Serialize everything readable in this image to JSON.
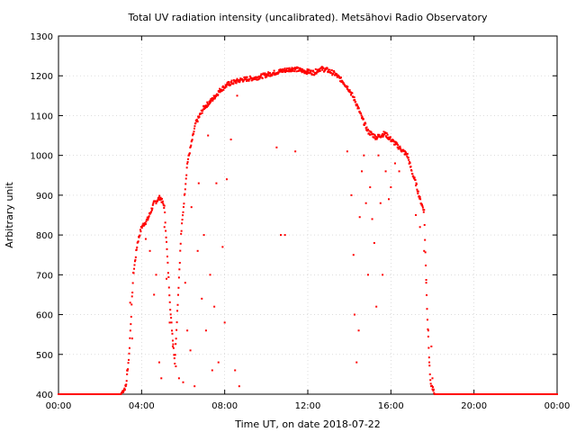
{
  "chart_data": {
    "type": "scatter",
    "title": "Total UV radiation intensity (uncalibrated). Metsähovi Radio Observatory",
    "xlabel": "Time UT, on date 2018-07-22",
    "ylabel": "Arbitrary unit",
    "xlim": [
      0,
      24
    ],
    "ylim": [
      400,
      1300
    ],
    "xticks": [
      0,
      4,
      8,
      12,
      16,
      20,
      24
    ],
    "xtick_labels": [
      "00:00",
      "04:00",
      "08:00",
      "12:00",
      "16:00",
      "20:00",
      "00:00"
    ],
    "yticks": [
      400,
      500,
      600,
      700,
      800,
      900,
      1000,
      1100,
      1200,
      1300
    ],
    "ytick_labels": [
      "400",
      "500",
      "600",
      "700",
      "800",
      "900",
      "1000",
      "1100",
      "1200",
      "1300"
    ],
    "grid": true,
    "marker_color": "#ff0000",
    "envelope": [
      [
        0,
        400
      ],
      [
        3.0,
        400
      ],
      [
        3.25,
        420
      ],
      [
        3.4,
        500
      ],
      [
        3.6,
        700
      ],
      [
        3.8,
        780
      ],
      [
        4.0,
        820
      ],
      [
        4.3,
        840
      ],
      [
        4.6,
        880
      ],
      [
        4.9,
        895
      ],
      [
        5.1,
        870
      ],
      [
        5.4,
        600
      ],
      [
        5.6,
        480
      ],
      [
        5.9,
        800
      ],
      [
        6.2,
        980
      ],
      [
        6.6,
        1080
      ],
      [
        7.0,
        1120
      ],
      [
        7.4,
        1140
      ],
      [
        7.8,
        1165
      ],
      [
        8.2,
        1180
      ],
      [
        8.8,
        1190
      ],
      [
        9.5,
        1195
      ],
      [
        10.2,
        1205
      ],
      [
        10.8,
        1213
      ],
      [
        11.3,
        1218
      ],
      [
        11.8,
        1212
      ],
      [
        12.3,
        1208
      ],
      [
        12.6,
        1218
      ],
      [
        12.9,
        1215
      ],
      [
        13.3,
        1205
      ],
      [
        13.7,
        1185
      ],
      [
        14.0,
        1165
      ],
      [
        14.3,
        1135
      ],
      [
        14.6,
        1095
      ],
      [
        14.9,
        1060
      ],
      [
        15.3,
        1045
      ],
      [
        15.7,
        1055
      ],
      [
        16.1,
        1035
      ],
      [
        16.5,
        1015
      ],
      [
        16.8,
        1000
      ],
      [
        17.0,
        960
      ],
      [
        17.2,
        930
      ],
      [
        17.4,
        890
      ],
      [
        17.6,
        860
      ],
      [
        17.75,
        600
      ],
      [
        17.9,
        430
      ],
      [
        18.1,
        400
      ],
      [
        24,
        400
      ]
    ],
    "scattered_points": [
      [
        3.3,
        460
      ],
      [
        3.45,
        630
      ],
      [
        3.55,
        540
      ],
      [
        4.2,
        790
      ],
      [
        4.4,
        760
      ],
      [
        4.6,
        650
      ],
      [
        4.7,
        700
      ],
      [
        4.85,
        480
      ],
      [
        4.95,
        440
      ],
      [
        5.1,
        820
      ],
      [
        5.2,
        690
      ],
      [
        5.35,
        580
      ],
      [
        5.5,
        520
      ],
      [
        5.65,
        470
      ],
      [
        5.8,
        440
      ],
      [
        6.0,
        430
      ],
      [
        6.1,
        680
      ],
      [
        6.2,
        560
      ],
      [
        6.35,
        510
      ],
      [
        6.4,
        870
      ],
      [
        6.55,
        420
      ],
      [
        6.7,
        760
      ],
      [
        6.75,
        930
      ],
      [
        6.9,
        640
      ],
      [
        7.0,
        800
      ],
      [
        7.1,
        560
      ],
      [
        7.2,
        1050
      ],
      [
        7.3,
        700
      ],
      [
        7.4,
        460
      ],
      [
        7.5,
        620
      ],
      [
        7.6,
        930
      ],
      [
        7.7,
        480
      ],
      [
        7.9,
        770
      ],
      [
        8.0,
        580
      ],
      [
        8.1,
        940
      ],
      [
        8.3,
        1040
      ],
      [
        8.5,
        460
      ],
      [
        8.6,
        1150
      ],
      [
        8.7,
        420
      ],
      [
        10.5,
        1020
      ],
      [
        10.7,
        800
      ],
      [
        10.9,
        800
      ],
      [
        11.4,
        1010
      ],
      [
        13.9,
        1010
      ],
      [
        14.1,
        900
      ],
      [
        14.2,
        750
      ],
      [
        14.25,
        600
      ],
      [
        14.35,
        480
      ],
      [
        14.45,
        560
      ],
      [
        14.5,
        845
      ],
      [
        14.6,
        960
      ],
      [
        14.7,
        1000
      ],
      [
        14.8,
        880
      ],
      [
        14.9,
        700
      ],
      [
        15.0,
        920
      ],
      [
        15.1,
        840
      ],
      [
        15.2,
        780
      ],
      [
        15.3,
        620
      ],
      [
        15.4,
        1000
      ],
      [
        15.5,
        880
      ],
      [
        15.6,
        700
      ],
      [
        15.75,
        960
      ],
      [
        15.9,
        890
      ],
      [
        16.0,
        920
      ],
      [
        16.2,
        980
      ],
      [
        16.4,
        960
      ],
      [
        17.2,
        850
      ],
      [
        17.4,
        820
      ],
      [
        17.6,
        760
      ],
      [
        17.7,
        680
      ],
      [
        17.8,
        560
      ],
      [
        17.85,
        480
      ],
      [
        17.95,
        520
      ],
      [
        18.0,
        440
      ]
    ]
  }
}
